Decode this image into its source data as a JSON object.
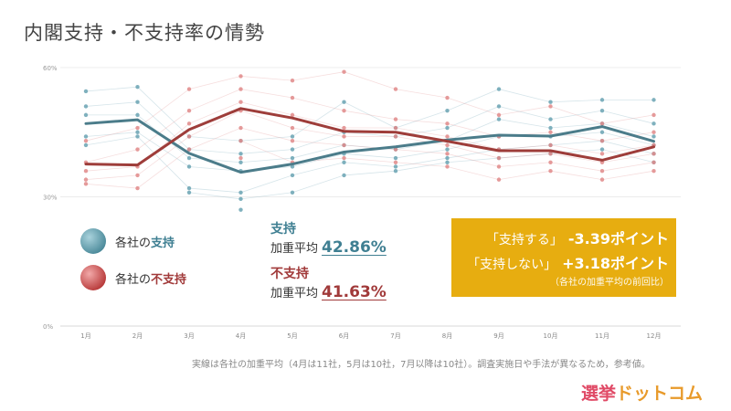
{
  "title": "内閣支持・不支持率の情勢",
  "legend": {
    "support": {
      "prefix": "各社の",
      "highlight": "支持"
    },
    "nonsupport": {
      "prefix": "各社の",
      "highlight": "不支持"
    }
  },
  "averages": {
    "label": "加重平均",
    "support": {
      "heading": "支持",
      "value": "42.86%"
    },
    "nonsupport": {
      "heading": "不支持",
      "value": "41.63%"
    }
  },
  "change_box": {
    "support_label": "「支持する」",
    "support_value": "-3.39ポイント",
    "nonsupport_label": "「支持しない」",
    "nonsupport_value": "+3.18ポイント",
    "note": "（各社の加重平均の前回比）"
  },
  "footnote": "実線は各社の加重平均（4月は11社，5月は10社，7月以降は10社）。調査実施日や手法が異なるため，参考値。",
  "logo": {
    "part1": "選挙",
    "part2": "ドットコム"
  },
  "colors": {
    "support": "#4b7c8a",
    "nonsupport": "#9e3d3a",
    "support_light": "#6aa3b3",
    "nonsupport_light": "#e08a8a",
    "box": "#e7ad10",
    "logo1": "#e04a66",
    "logo2": "#e89a2a"
  },
  "chart_data": {
    "type": "line",
    "categories": [
      "1月",
      "2月",
      "3月",
      "4月",
      "5月",
      "6月",
      "7月",
      "8月",
      "9月",
      "10月",
      "11月",
      "12月"
    ],
    "yticks": [
      "0%",
      "30%",
      "60%"
    ],
    "ylim": [
      0,
      60
    ],
    "series": [
      {
        "name": "支持",
        "values": [
          47.0,
          47.9,
          40.1,
          35.7,
          37.6,
          40.4,
          41.6,
          43.2,
          44.3,
          44.1,
          46.3,
          42.9
        ]
      },
      {
        "name": "不支持",
        "values": [
          37.6,
          37.4,
          45.6,
          50.5,
          48.3,
          45.2,
          45.0,
          42.9,
          40.7,
          40.7,
          38.5,
          41.6
        ]
      }
    ],
    "support_polls": [
      [
        54.5,
        51.0,
        49.0,
        44.0,
        42.0
      ],
      [
        55.5,
        52.0,
        49.0,
        45.0,
        44.0
      ],
      [
        44.0,
        41.0,
        39.0,
        37.0,
        32.0,
        31.0
      ],
      [
        43.0,
        40.0,
        38.0,
        36.0,
        31.0,
        29.5,
        27.0
      ],
      [
        44.0,
        41.0,
        39.0,
        37.0,
        35.0,
        31.0
      ],
      [
        52.0,
        45.0,
        42.0,
        40.0,
        38.0,
        35.0
      ],
      [
        46.0,
        44.0,
        41.0,
        39.0,
        37.0,
        36.0
      ],
      [
        50.0,
        46.0,
        43.0,
        41.0,
        39.0,
        38.0
      ],
      [
        55.0,
        51.0,
        48.0,
        44.0,
        41.0,
        39.0
      ],
      [
        52.0,
        48.0,
        46.0,
        44.0,
        42.0,
        40.0
      ],
      [
        52.5,
        50.0,
        47.0,
        45.0,
        43.0,
        41.0
      ],
      [
        52.5,
        47.0,
        44.0,
        42.0,
        40.0,
        38.0
      ]
    ],
    "nonsupport_polls": [
      [
        43.0,
        38.0,
        36.0,
        34.0,
        33.0
      ],
      [
        46.0,
        41.0,
        37.0,
        35.0,
        32.0
      ],
      [
        55.0,
        50.0,
        47.0,
        44.0,
        41.0
      ],
      [
        58.0,
        55.0,
        52.0,
        50.0,
        46.0,
        43.0,
        39.0
      ],
      [
        57.0,
        53.0,
        49.0,
        46.0,
        43.0,
        38.0
      ],
      [
        59.0,
        50.0,
        46.0,
        44.0,
        42.0,
        39.0
      ],
      [
        55.0,
        48.0,
        46.0,
        44.0,
        41.0,
        38.0
      ],
      [
        53.0,
        47.0,
        44.0,
        42.0,
        40.0,
        37.0
      ],
      [
        49.0,
        44.0,
        41.0,
        39.0,
        37.0,
        34.0
      ],
      [
        51.0,
        45.0,
        42.0,
        40.0,
        38.0,
        36.0
      ],
      [
        47.0,
        43.0,
        40.0,
        38.0,
        36.0,
        34.0
      ],
      [
        49.0,
        45.0,
        42.0,
        40.0,
        38.0,
        36.0
      ]
    ]
  }
}
